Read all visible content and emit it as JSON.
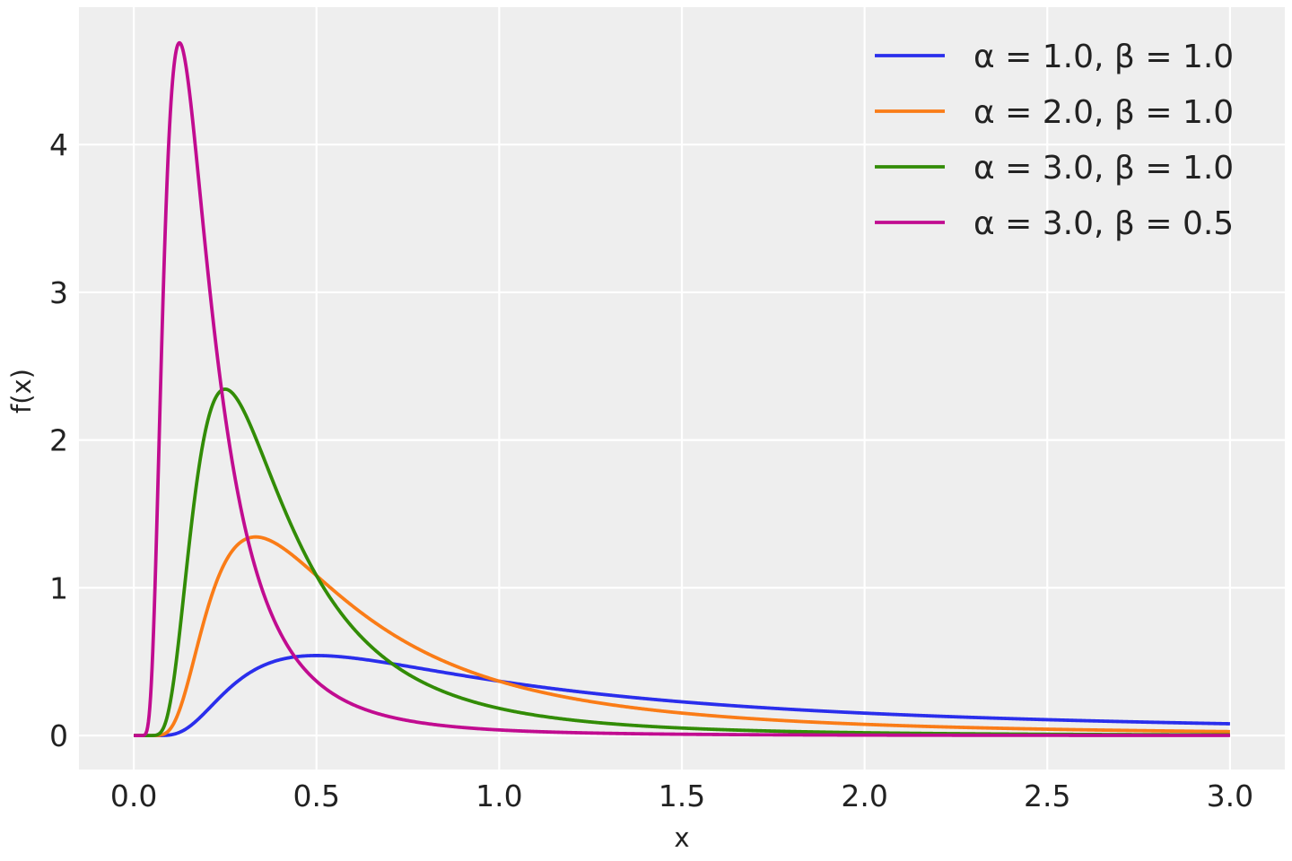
{
  "chart_data": {
    "type": "line",
    "title": "",
    "xlabel": "x",
    "ylabel": "f(x)",
    "xlim": [
      -0.15,
      3.15
    ],
    "ylim": [
      -0.23,
      4.93
    ],
    "xticks": [
      0.0,
      0.5,
      1.0,
      1.5,
      2.0,
      2.5,
      3.0
    ],
    "xtick_labels": [
      "0.0",
      "0.5",
      "1.0",
      "1.5",
      "2.0",
      "2.5",
      "3.0"
    ],
    "yticks": [
      0,
      1,
      2,
      3,
      4
    ],
    "ytick_labels": [
      "0",
      "1",
      "2",
      "3",
      "4"
    ],
    "grid": true,
    "background": "#eeeeee",
    "legend_position": "top-right",
    "x_range": [
      0.0,
      3.0
    ],
    "distribution": "inverse-gamma",
    "series": [
      {
        "name": "α = 1.0, β = 1.0",
        "alpha": 1.0,
        "beta": 1.0,
        "color": "#2a2eec",
        "peak": {
          "x": 0.5,
          "y": 0.54
        }
      },
      {
        "name": "α = 2.0, β = 1.0",
        "alpha": 2.0,
        "beta": 1.0,
        "color": "#fa7c17",
        "peak": {
          "x": 0.333,
          "y": 1.34
        }
      },
      {
        "name": "α = 3.0, β = 1.0",
        "alpha": 3.0,
        "beta": 1.0,
        "color": "#328c06",
        "peak": {
          "x": 0.25,
          "y": 2.34
        }
      },
      {
        "name": "α = 3.0, β = 0.5",
        "alpha": 3.0,
        "beta": 0.5,
        "color": "#c10c90",
        "peak": {
          "x": 0.125,
          "y": 4.69
        }
      }
    ]
  }
}
